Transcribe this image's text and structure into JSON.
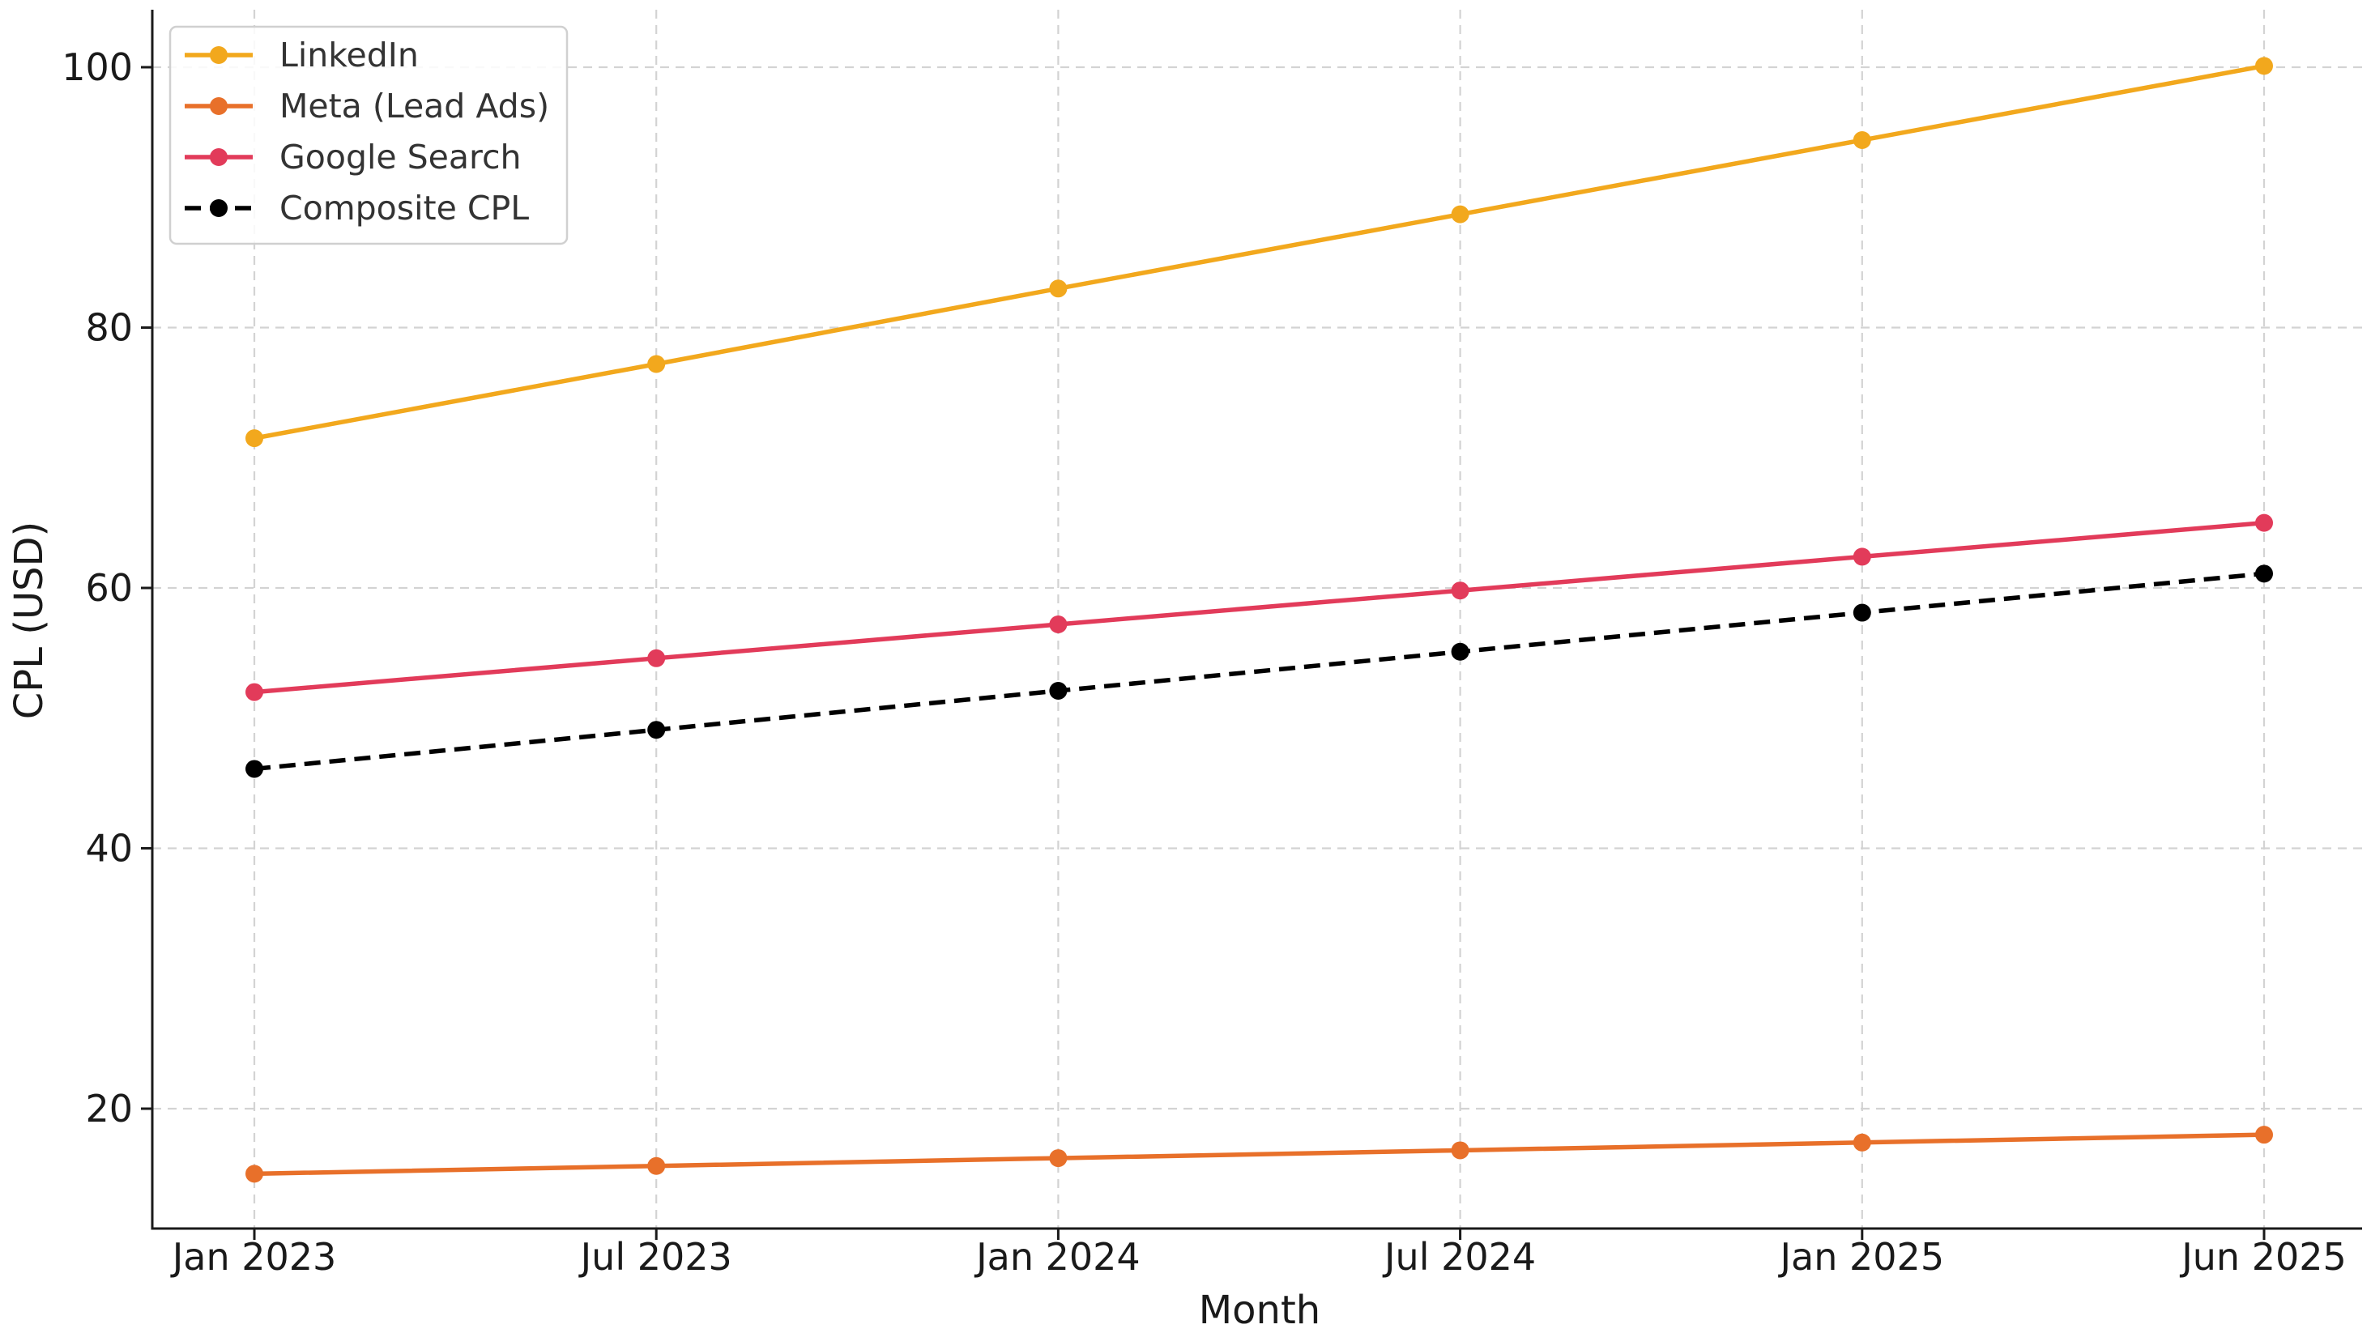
{
  "chart_data": {
    "type": "line",
    "title": "",
    "xlabel": "Month",
    "ylabel": "CPL (USD)",
    "x": [
      "Jan 2023",
      "Jul 2023",
      "Jan 2024",
      "Jul 2024",
      "Jan 2025",
      "Jun 2025"
    ],
    "y_ticks": [
      20,
      40,
      60,
      80,
      100
    ],
    "ylim": [
      10.8,
      104.6
    ],
    "grid": true,
    "legend_position": "top-left",
    "series": [
      {
        "name": "LinkedIn",
        "color": "#f2a81d",
        "line_style": "solid",
        "values": [
          71.5,
          77.2,
          83.0,
          88.7,
          94.4,
          100.1
        ]
      },
      {
        "name": "Meta (Lead Ads)",
        "color": "#e8702a",
        "line_style": "solid",
        "values": [
          15.0,
          15.6,
          16.2,
          16.8,
          17.4,
          18.0
        ]
      },
      {
        "name": "Google Search",
        "color": "#e23b5a",
        "line_style": "solid",
        "values": [
          52.0,
          54.6,
          57.2,
          59.8,
          62.4,
          65.0
        ]
      },
      {
        "name": "Composite CPL",
        "color": "#000000",
        "line_style": "dashed",
        "values": [
          46.1,
          49.1,
          52.1,
          55.1,
          58.1,
          61.1
        ]
      }
    ]
  }
}
